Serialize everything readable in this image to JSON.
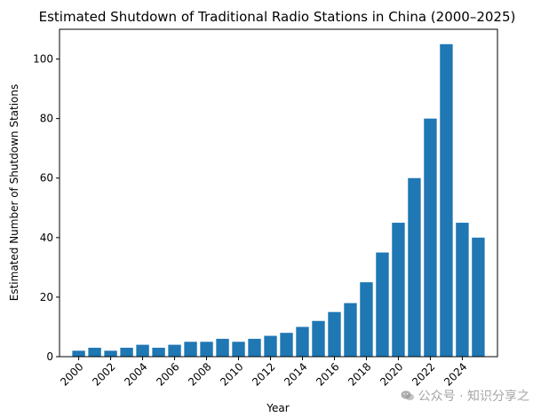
{
  "chart_data": {
    "type": "bar",
    "title": "Estimated Shutdown of Traditional Radio Stations in China (2000–2025)",
    "xlabel": "Year",
    "ylabel": "Estimated Number of Shutdown Stations",
    "x": [
      2000,
      2001,
      2002,
      2003,
      2004,
      2005,
      2006,
      2007,
      2008,
      2009,
      2010,
      2011,
      2012,
      2013,
      2014,
      2015,
      2016,
      2017,
      2018,
      2019,
      2020,
      2021,
      2022,
      2023,
      2024,
      2025
    ],
    "values": [
      2,
      3,
      2,
      3,
      4,
      3,
      4,
      5,
      5,
      6,
      5,
      6,
      7,
      8,
      10,
      12,
      15,
      18,
      25,
      35,
      45,
      60,
      80,
      105,
      45,
      40
    ],
    "xticks": [
      "2000",
      "2002",
      "2004",
      "2006",
      "2008",
      "2010",
      "2012",
      "2014",
      "2016",
      "2018",
      "2020",
      "2022",
      "2024"
    ],
    "yticks": [
      "0",
      "20",
      "40",
      "60",
      "80",
      "100"
    ],
    "ylim": [
      0,
      110
    ],
    "xlim": [
      1998.8,
      2026.2
    ],
    "bar_color": "#1f77b4",
    "grid": false
  },
  "watermark": {
    "text": "公众号 · 知识分享之",
    "icon": "wechat-icon"
  }
}
